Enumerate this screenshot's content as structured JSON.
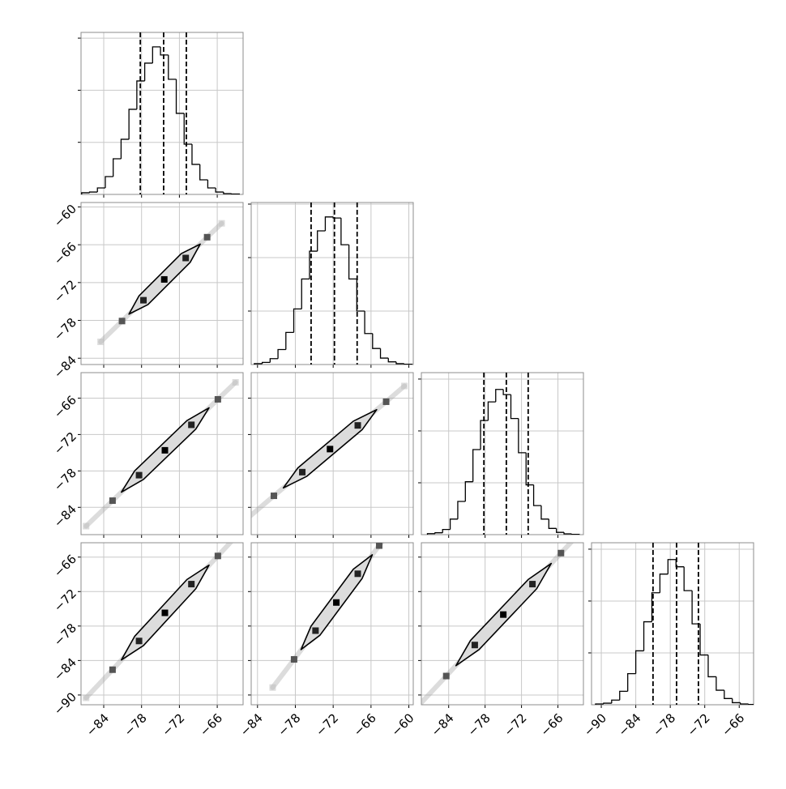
{
  "chart_data": {
    "type": "corner",
    "grid": true,
    "params": [
      {
        "lim": [
          -87.6,
          -61.9
        ],
        "ticks": [
          {
            "value": -84,
            "label": "−84"
          },
          {
            "value": -78,
            "label": "−78"
          },
          {
            "value": -72,
            "label": "−72"
          },
          {
            "value": -66,
            "label": "−66"
          }
        ]
      },
      {
        "lim": [
          -85,
          -59.3
        ],
        "ticks": [
          {
            "value": -84,
            "label": "−84"
          },
          {
            "value": -78,
            "label": "−78"
          },
          {
            "value": -72,
            "label": "−72"
          },
          {
            "value": -66,
            "label": "−66"
          },
          {
            "value": -60,
            "label": "−60"
          }
        ]
      },
      {
        "lim": [
          -88.5,
          -61.8
        ],
        "ticks": [
          {
            "value": -84,
            "label": "−84"
          },
          {
            "value": -78,
            "label": "−78"
          },
          {
            "value": -72,
            "label": "−72"
          },
          {
            "value": -66,
            "label": "−66"
          }
        ]
      },
      {
        "lim": [
          -91.7,
          -63.5
        ],
        "ticks": [
          {
            "value": -90,
            "label": "−90"
          },
          {
            "value": -84,
            "label": "−84"
          },
          {
            "value": -78,
            "label": "−78"
          },
          {
            "value": -72,
            "label": "−72"
          },
          {
            "value": -66,
            "label": "−66"
          }
        ]
      }
    ],
    "histograms": [
      {
        "bins": [
          -87.5,
          -86.25,
          -85,
          -83.75,
          -82.5,
          -81.25,
          -80,
          -78.75,
          -77.5,
          -76.25,
          -75,
          -73.75,
          -72.5,
          -71.25,
          -70,
          -68.75,
          -67.5,
          -66.25,
          -65,
          -63.75,
          -62.5
        ],
        "counts": [
          16,
          23,
          62,
          171,
          342,
          529,
          817,
          1089,
          1260,
          1416,
          1338,
          1105,
          778,
          482,
          288,
          140,
          62,
          23,
          8,
          4
        ],
        "ylim": [
          0,
          1555
        ],
        "yticks": [
          500,
          1000,
          1500
        ],
        "quantiles": [
          -78.2,
          -74.5,
          -70.9
        ]
      },
      {
        "bins": [
          -84.5,
          -83.25,
          -82,
          -80.75,
          -79.5,
          -78.25,
          -77,
          -75.75,
          -74.5,
          -73.25,
          -72,
          -70.75,
          -69.5,
          -68.25,
          -67,
          -65.75,
          -64.5,
          -63.25,
          -62,
          -60.75,
          -59.5
        ],
        "counts": [
          8,
          20,
          55,
          140,
          300,
          520,
          800,
          1060,
          1250,
          1380,
          1370,
          1120,
          800,
          500,
          290,
          150,
          60,
          25,
          8,
          3
        ],
        "ylim": [
          0,
          1515
        ],
        "yticks": [
          500,
          1000,
          1500
        ],
        "quantiles": [
          -75.5,
          -71.8,
          -68.2
        ]
      },
      {
        "bins": [
          -87.5,
          -86.25,
          -85,
          -83.75,
          -82.5,
          -81.25,
          -80,
          -78.75,
          -77.5,
          -76.25,
          -75,
          -73.75,
          -72.5,
          -71.25,
          -70,
          -68.75,
          -67.5,
          -66.25,
          -65,
          -63.75,
          -62.5
        ],
        "counts": [
          10,
          18,
          50,
          150,
          320,
          510,
          820,
          1100,
          1280,
          1400,
          1350,
          1120,
          790,
          480,
          280,
          150,
          60,
          22,
          8,
          3
        ],
        "ylim": [
          0,
          1562
        ],
        "yticks": [
          500,
          1000,
          1500
        ],
        "quantiles": [
          -78.2,
          -74.5,
          -70.9
        ]
      },
      {
        "bins": [
          -91,
          -89.6,
          -88.2,
          -86.8,
          -85.4,
          -84,
          -82.6,
          -81.2,
          -79.8,
          -78.4,
          -77,
          -75.6,
          -74.2,
          -72.8,
          -71.4,
          -70,
          -68.6,
          -67.2,
          -65.8,
          -64.4,
          -63
        ],
        "counts": [
          8,
          15,
          45,
          130,
          300,
          520,
          800,
          1080,
          1260,
          1400,
          1330,
          1100,
          780,
          480,
          270,
          140,
          60,
          20,
          8,
          3
        ],
        "ylim": [
          0,
          1562
        ],
        "yticks": [
          500,
          1000,
          1500
        ],
        "quantiles": [
          -81.0,
          -76.9,
          -73.1
        ]
      }
    ],
    "pairs": [
      {
        "x": [
          -84.5,
          -81.1,
          -77.7,
          -74.4,
          -71.0,
          -67.6,
          -65.3
        ],
        "y": [
          -81.4,
          -78.1,
          -74.8,
          -71.5,
          -68.1,
          -64.8,
          -62.6
        ],
        "contour_x": [
          -80.0,
          -78.4,
          -71.7,
          -68.7,
          -70.3,
          -77.0
        ],
        "contour_y": [
          -77.0,
          -74.1,
          -67.4,
          -65.9,
          -68.8,
          -75.5
        ]
      },
      {
        "x": [
          -86.8,
          -82.6,
          -78.4,
          -74.3,
          -70.1,
          -65.9,
          -63.1
        ],
        "y": [
          -87.1,
          -82.9,
          -78.7,
          -74.6,
          -70.4,
          -66.2,
          -63.4
        ],
        "contour_x": [
          -81.2,
          -79.1,
          -70.8,
          -67.3,
          -69.4,
          -77.7
        ],
        "contour_y": [
          -81.5,
          -78.0,
          -69.7,
          -67.6,
          -71.1,
          -79.4
        ]
      },
      {
        "x": [
          -85.8,
          -81.4,
          -76.9,
          -72.5,
          -68.1,
          -63.6,
          -60.7
        ],
        "y": [
          -86.0,
          -82.1,
          -78.2,
          -74.4,
          -70.5,
          -66.6,
          -64.0
        ],
        "contour_x": [
          -79.9,
          -77.6,
          -68.8,
          -65.1,
          -67.4,
          -76.2
        ],
        "contour_y": [
          -80.8,
          -77.5,
          -69.8,
          -67.9,
          -71.2,
          -78.9
        ]
      },
      {
        "x": [
          -86.8,
          -82.6,
          -78.4,
          -74.3,
          -70.1,
          -65.9,
          -63.1
        ],
        "y": [
          -90.5,
          -85.6,
          -80.6,
          -75.7,
          -70.7,
          -65.8,
          -62.5
        ],
        "contour_x": [
          -81.2,
          -79.1,
          -70.8,
          -67.3,
          -69.4,
          -77.7
        ],
        "contour_y": [
          -83.9,
          -79.8,
          -69.9,
          -67.4,
          -71.5,
          -81.4
        ]
      },
      {
        "x": [
          -81.6,
          -78.2,
          -74.8,
          -71.5,
          -68.1,
          -64.7,
          -62.4
        ],
        "y": [
          -88.7,
          -83.8,
          -78.8,
          -73.9,
          -68.9,
          -64.0,
          -60.7
        ],
        "contour_x": [
          -77.1,
          -75.5,
          -68.8,
          -65.8,
          -67.4,
          -74.1
        ],
        "contour_y": [
          -82.1,
          -78.0,
          -68.1,
          -65.6,
          -69.7,
          -79.6
        ]
      },
      {
        "x": [
          -89.1,
          -84.4,
          -79.7,
          -75.0,
          -70.2,
          -65.5,
          -62.4
        ],
        "y": [
          -92.0,
          -86.7,
          -81.3,
          -76.0,
          -70.7,
          -65.3,
          -61.8
        ],
        "contour_x": [
          -82.8,
          -80.4,
          -70.9,
          -67.1,
          -69.5,
          -79.0
        ],
        "contour_y": [
          -84.9,
          -80.5,
          -69.9,
          -67.1,
          -71.5,
          -82.1
        ]
      }
    ]
  }
}
